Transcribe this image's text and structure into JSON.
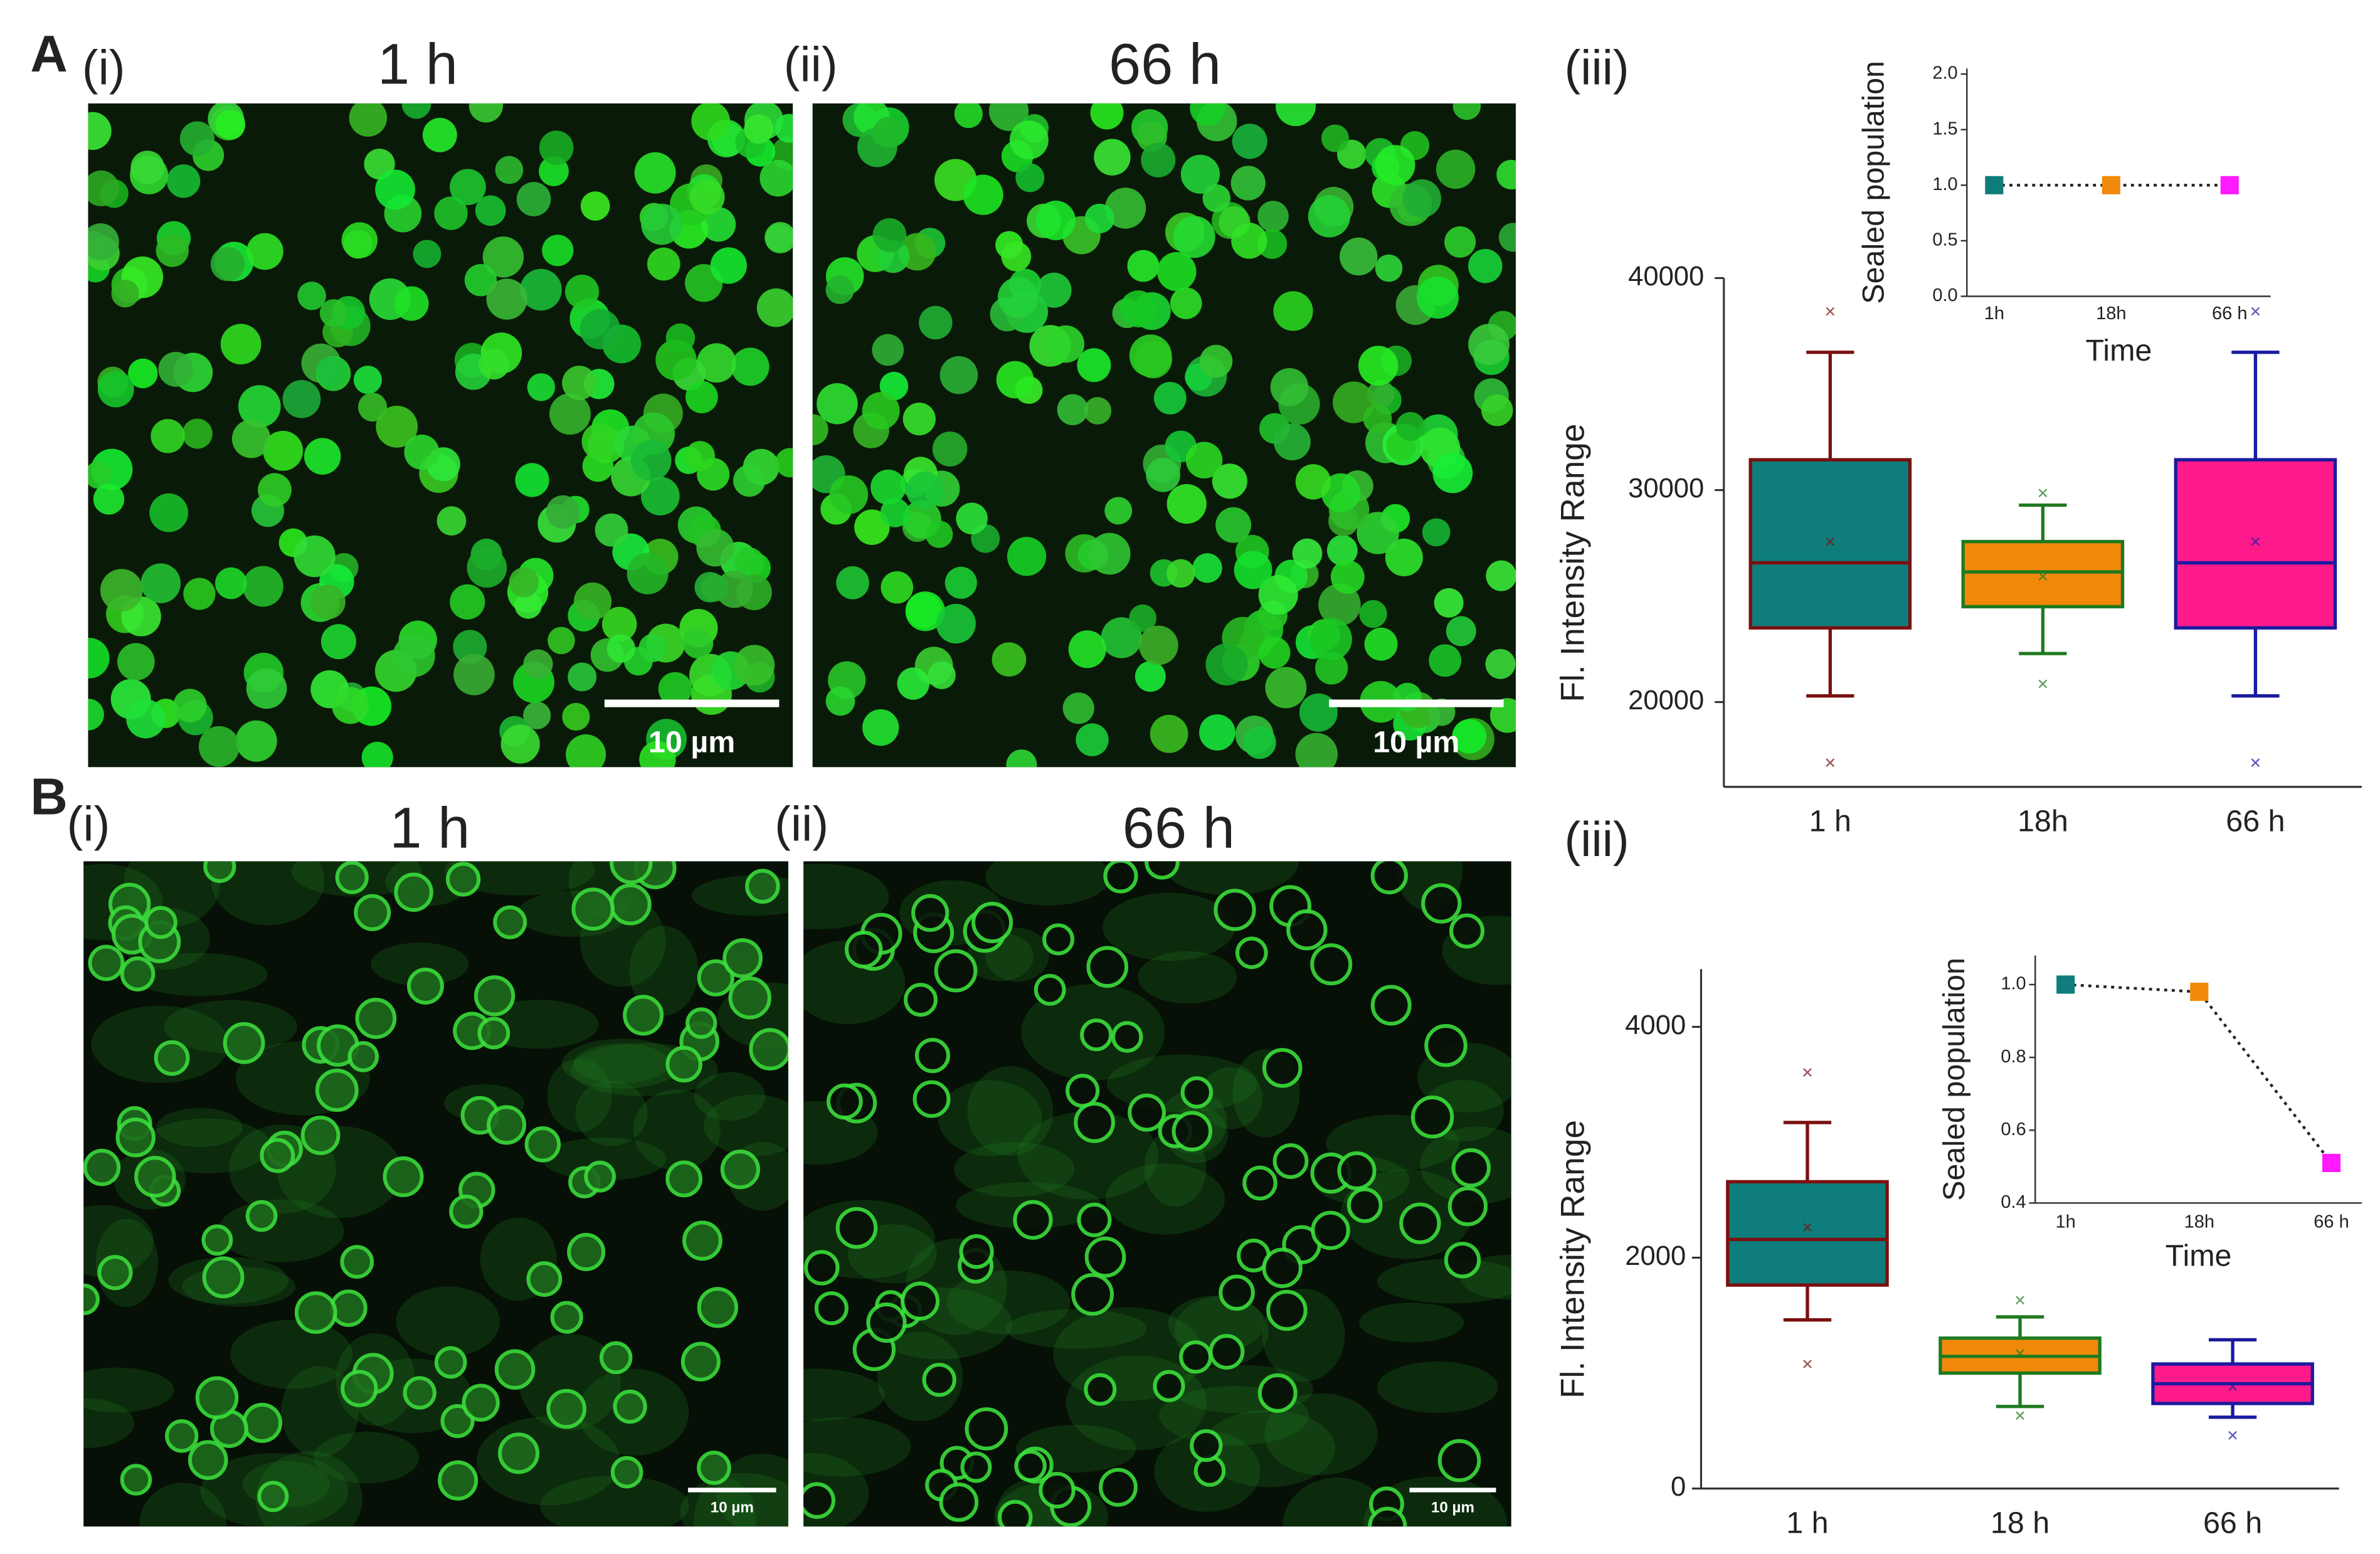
{
  "panel_a": {
    "label": "A",
    "chart_label": "(iii)",
    "images": [
      {
        "label": "(i)",
        "time": "1 h",
        "scale_bar": "10 µm"
      },
      {
        "label": "(ii)",
        "time": "66 h",
        "scale_bar": "10 µm"
      }
    ]
  },
  "panel_b": {
    "label": "B",
    "chart_label": "(iii)",
    "images": [
      {
        "label": "(i)",
        "time": "1 h",
        "scale_bar": "10 µm"
      },
      {
        "label": "(ii)",
        "time": "66 h",
        "scale_bar": "10 µm"
      }
    ]
  },
  "chart_data": [
    {
      "type": "box",
      "ylabel": "Fl. Intensity Range",
      "categories": [
        "1 h",
        "18h",
        "66 h"
      ],
      "ylim": [
        16000,
        40000
      ],
      "yticks": [
        20000,
        30000,
        40000
      ],
      "boxes": [
        {
          "whisker_low": 20290,
          "q1": 23500,
          "median": 26570,
          "q3": 31430,
          "whisker_high": 36500,
          "mean": 27570,
          "outliers": [
            38430,
            17140
          ],
          "fill": "#0e7d7b",
          "stroke": "#7a1010"
        },
        {
          "whisker_low": 22290,
          "q1": 24500,
          "median": 26140,
          "q3": 27570,
          "whisker_high": 29290,
          "mean": 25930,
          "outliers": [
            29860,
            20860
          ],
          "fill": "#f0890a",
          "stroke": "#1f7a1f"
        },
        {
          "whisker_low": 20290,
          "q1": 23500,
          "median": 26570,
          "q3": 31430,
          "whisker_high": 36500,
          "mean": 27570,
          "outliers": [
            38430,
            17140
          ],
          "fill": "#ff1a8c",
          "stroke": "#1a1aa0"
        }
      ]
    },
    {
      "type": "line",
      "xlabel": "Time",
      "ylabel": "Sealed population",
      "categories": [
        "1h",
        "18h",
        "66 h"
      ],
      "values": [
        1.0,
        1.0,
        1.0
      ],
      "point_colors": [
        "#0e7d7b",
        "#f0890a",
        "#ff1aff"
      ],
      "ylim": [
        0,
        2.05
      ],
      "yticks": [
        {
          "value": 0,
          "label": "0.0"
        },
        {
          "value": 0.5,
          "label": "0.5"
        },
        {
          "value": 1,
          "label": "1.0"
        },
        {
          "value": 1.5,
          "label": "1.5"
        },
        {
          "value": 2,
          "label": "2.0"
        }
      ]
    },
    {
      "type": "box",
      "ylabel": "Fl. Intensity Range",
      "categories": [
        "1 h",
        "18 h",
        "66 h"
      ],
      "ylim": [
        0,
        4500
      ],
      "yticks": [
        0,
        2000,
        4000
      ],
      "boxes": [
        {
          "whisker_low": 1461,
          "q1": 1763,
          "median": 2158,
          "q3": 2658,
          "whisker_high": 3171,
          "mean": 2263,
          "outliers": [
            3605,
            1079
          ],
          "fill": "#0e7d7b",
          "stroke": "#7a1010"
        },
        {
          "whisker_low": 711,
          "q1": 1000,
          "median": 1145,
          "q3": 1303,
          "whisker_high": 1487,
          "mean": 1170,
          "outliers": [
            1632,
            632
          ],
          "fill": "#f0890a",
          "stroke": "#1f7a1f"
        },
        {
          "whisker_low": 618,
          "q1": 737,
          "median": 908,
          "q3": 1079,
          "whisker_high": 1289,
          "mean": 882,
          "outliers": [
            461
          ],
          "fill": "#ff1a8c",
          "stroke": "#1a1aa0"
        }
      ]
    },
    {
      "type": "line",
      "xlabel": "Time",
      "ylabel": "Sealed population",
      "categories": [
        "1h",
        "18h",
        "66 h"
      ],
      "values": [
        1.0,
        0.98,
        0.51
      ],
      "point_colors": [
        "#0e7d7b",
        "#f0890a",
        "#ff1aff"
      ],
      "ylim": [
        0.4,
        1.08
      ],
      "yticks": [
        0.4,
        0.6,
        0.8,
        {
          "value": 1,
          "label": "1.0"
        }
      ]
    }
  ]
}
